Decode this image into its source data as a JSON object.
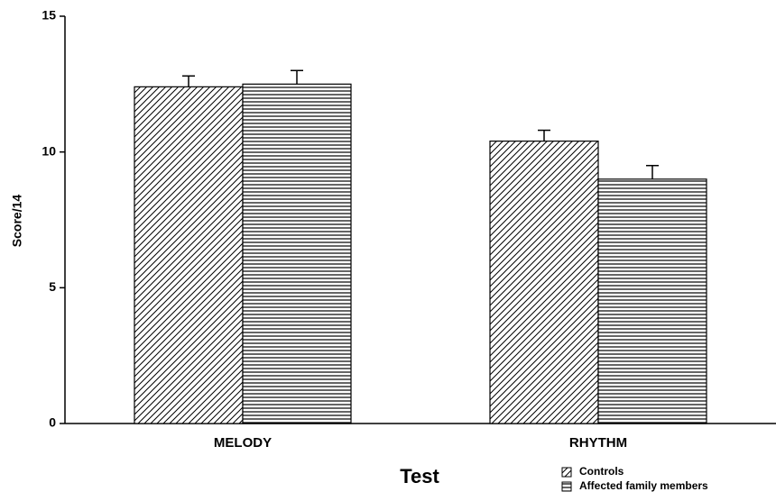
{
  "chart_data": {
    "type": "bar",
    "categories": [
      "MELODY",
      "RHYTHM"
    ],
    "series": [
      {
        "name": "Controls",
        "color": "#000000",
        "hatch": "diagonal",
        "values": [
          12.4,
          10.4
        ],
        "errors": [
          0.4,
          0.4
        ]
      },
      {
        "name": "Affected family members",
        "color": "#000000",
        "hatch": "horizontal",
        "values": [
          12.5,
          9.0
        ],
        "errors": [
          0.5,
          0.5
        ]
      }
    ],
    "xlabel": "Test",
    "ylabel": "Score/14",
    "ylim": [
      0,
      15
    ],
    "yticks": [
      0,
      5,
      10,
      15
    ],
    "grid": false,
    "legend": "lower right"
  }
}
